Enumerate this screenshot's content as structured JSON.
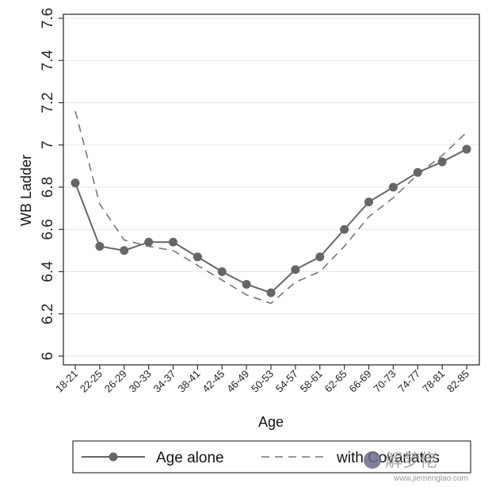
{
  "chart_data": {
    "type": "line",
    "xlabel": "Age",
    "ylabel": "WB Ladder",
    "ylim": [
      6,
      7.6
    ],
    "yticks": [
      "6",
      "6.2",
      "6.4",
      "6.6",
      "6.8",
      "7",
      "7.2",
      "7.4",
      "7.6"
    ],
    "grid": true,
    "legend_position": "bottom",
    "categories": [
      "18-21",
      "22-25",
      "26-29",
      "30-33",
      "34-37",
      "38-41",
      "42-45",
      "46-49",
      "50-53",
      "54-57",
      "58-61",
      "62-65",
      "66-69",
      "70-73",
      "74-77",
      "78-81",
      "82-85"
    ],
    "series": [
      {
        "name": "Age alone",
        "style": "solid-markers",
        "color": "#666666",
        "values": [
          6.82,
          6.52,
          6.5,
          6.54,
          6.54,
          6.47,
          6.4,
          6.34,
          6.3,
          6.41,
          6.47,
          6.6,
          6.73,
          6.8,
          6.87,
          6.92,
          6.98
        ]
      },
      {
        "name": "with Covariates",
        "style": "dashed",
        "color": "#777777",
        "values": [
          7.16,
          6.72,
          6.55,
          6.52,
          6.5,
          6.43,
          6.36,
          6.29,
          6.25,
          6.35,
          6.4,
          6.52,
          6.66,
          6.75,
          6.86,
          6.95,
          7.06
        ]
      }
    ]
  },
  "watermark": {
    "text": "解梦佬",
    "url": "www.jiemenglao.com"
  }
}
